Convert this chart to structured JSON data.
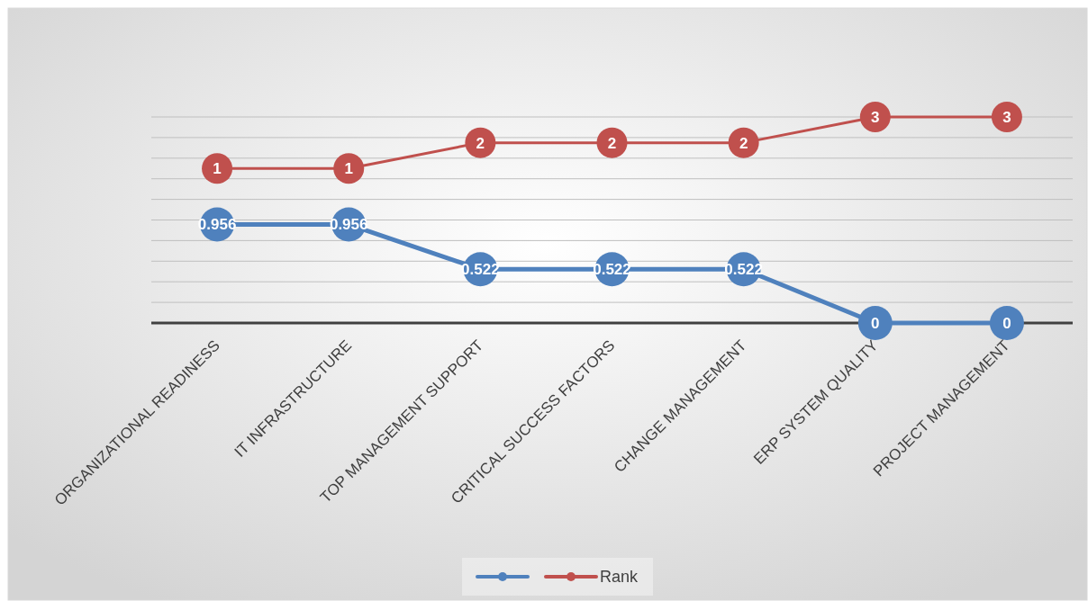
{
  "chart_data": {
    "type": "line",
    "categories": [
      "ORGANIZATIONAL READINESS",
      "IT INFRASTRUCTURE",
      "TOP MANAGEMENT SUPPORT",
      "CRITICAL SUCCESS FACTORS",
      "CHANGE MANAGEMENT",
      "ERP SYSTEM QUALITY",
      "PROJECT MANAGEMENT"
    ],
    "series": [
      {
        "color": "#4f81bd",
        "values": [
          0.956,
          0.956,
          0.522,
          0.522,
          0.522,
          0,
          0
        ]
      },
      {
        "name": "Rank",
        "color": "#c0504d",
        "axis": "y2",
        "values": [
          1,
          1,
          2,
          2,
          2,
          3,
          3
        ]
      }
    ],
    "ylim": [
      0,
      2
    ],
    "yticks": [
      {
        "value": 0,
        "label": null
      },
      {
        "value": 0.2,
        "label": null
      },
      {
        "value": 0.4,
        "label": null
      },
      {
        "value": 0.6,
        "label": null
      },
      {
        "value": 0.8,
        "label": null
      },
      {
        "value": 1,
        "label": null
      },
      {
        "value": 1.2,
        "label": null
      },
      {
        "value": 1.4,
        "label": null
      },
      {
        "value": 1.6,
        "label": null
      },
      {
        "value": 1.8,
        "label": null
      },
      {
        "value": 2,
        "label": null
      }
    ],
    "y2lim": [
      -5,
      3
    ],
    "tick_labels": "x",
    "grid": "y",
    "data_labels": true,
    "marker": "circle",
    "legend": "bottom"
  }
}
